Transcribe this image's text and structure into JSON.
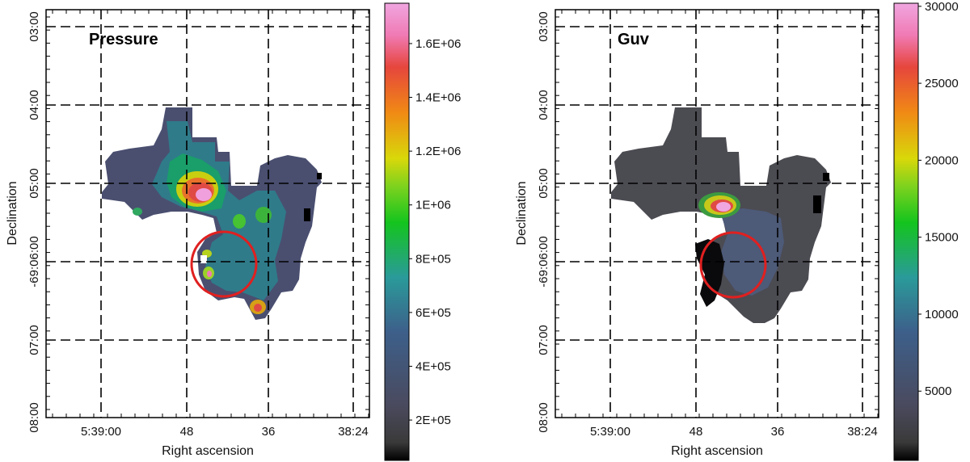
{
  "chart_data": [
    {
      "type": "heatmap",
      "title": "Pressure",
      "xlabel": "Right ascension",
      "ylabel": "Declination",
      "x_ticks": [
        "5:39:00",
        "48",
        "36",
        "38:24"
      ],
      "y_ticks": [
        "03:00",
        "04:00",
        "05:00",
        "-69:06:00",
        "07:00",
        "08:00"
      ],
      "colorbar": {
        "ticks": [
          "1.6E+06",
          "1.4E+06",
          "1.2E+06",
          "1E+06",
          "8E+05",
          "6E+05",
          "4E+05",
          "2E+05"
        ],
        "tick_values": [
          1600000,
          1400000,
          1200000,
          1000000,
          800000,
          600000,
          400000,
          200000
        ],
        "range": [
          50000,
          1750000
        ]
      },
      "annotations": [
        {
          "shape": "circle",
          "color": "#e02020"
        }
      ],
      "grid": true
    },
    {
      "type": "heatmap",
      "title": "Guv",
      "xlabel": "Right ascension",
      "ylabel": "Declination",
      "x_ticks": [
        "5:39:00",
        "48",
        "36",
        "38:24"
      ],
      "y_ticks": [
        "03:00",
        "04:00",
        "05:00",
        "-69:06:00",
        "07:00",
        "08:00"
      ],
      "colorbar": {
        "ticks": [
          "30000",
          "25000",
          "20000",
          "15000",
          "10000",
          "5000"
        ],
        "tick_values": [
          30000,
          25000,
          20000,
          15000,
          10000,
          5000
        ],
        "range": [
          500,
          30200
        ]
      },
      "annotations": [
        {
          "shape": "circle",
          "color": "#e02020"
        }
      ],
      "grid": true
    }
  ]
}
